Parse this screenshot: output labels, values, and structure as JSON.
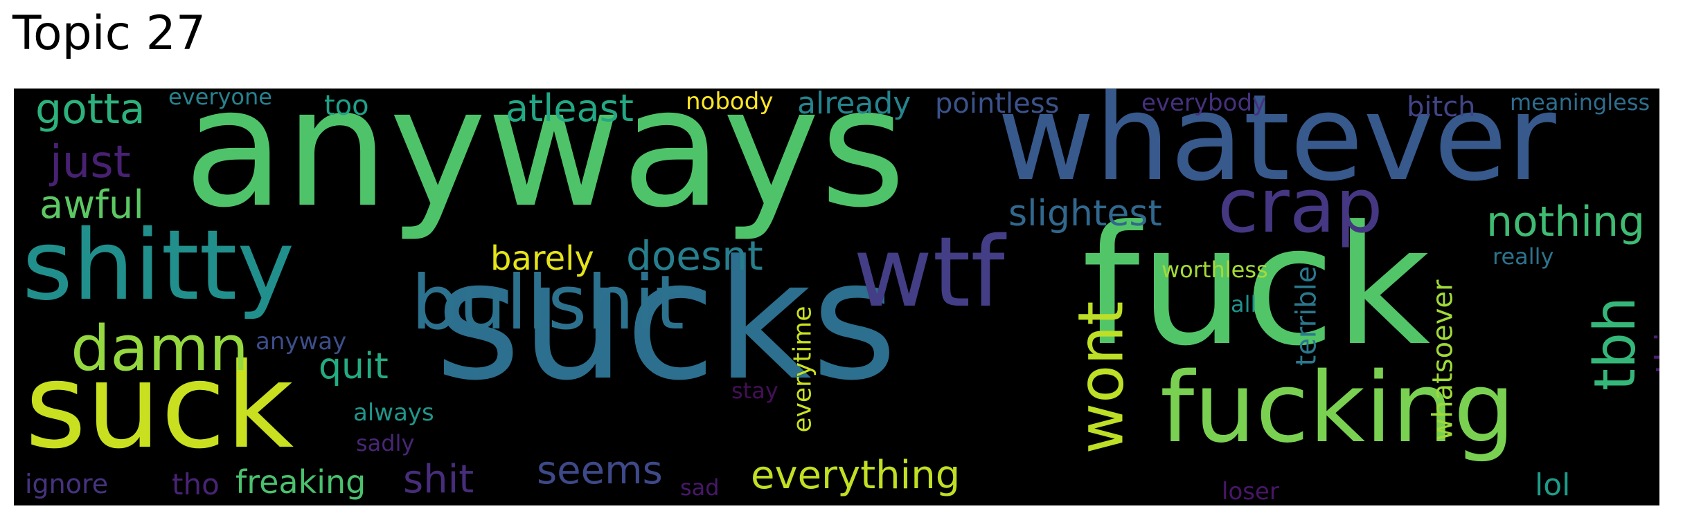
{
  "title": "Topic 27",
  "words": [
    {
      "text": "anyways",
      "color": "#4fc36a"
    },
    {
      "text": "whatever",
      "color": "#37598c"
    },
    {
      "text": "fuck",
      "color": "#52c569"
    },
    {
      "text": "sucks",
      "color": "#2c6f8e"
    },
    {
      "text": "shitty",
      "color": "#21908d"
    },
    {
      "text": "suck",
      "color": "#c8e020"
    },
    {
      "text": "fucking",
      "color": "#7ad151"
    },
    {
      "text": "bullshit",
      "color": "#2c728e"
    },
    {
      "text": "wtf",
      "color": "#433e85"
    },
    {
      "text": "crap",
      "color": "#453781"
    },
    {
      "text": "damn",
      "color": "#95d840"
    },
    {
      "text": "wont",
      "color": "#bddf26"
    },
    {
      "text": "tbh",
      "color": "#35b779"
    },
    {
      "text": "nothing",
      "color": "#3fbc73"
    },
    {
      "text": "just",
      "color": "#482173"
    },
    {
      "text": "gotta",
      "color": "#2db27d"
    },
    {
      "text": "awful",
      "color": "#5cc863"
    },
    {
      "text": "atleast",
      "color": "#22a884"
    },
    {
      "text": "slightest",
      "color": "#31688e"
    },
    {
      "text": "doesnt",
      "color": "#277f8e"
    },
    {
      "text": "barely",
      "color": "#e5e419"
    },
    {
      "text": "everything",
      "color": "#c2df23"
    },
    {
      "text": "seems",
      "color": "#3e4989"
    },
    {
      "text": "shit",
      "color": "#472d7b"
    },
    {
      "text": "quit",
      "color": "#25ab82"
    },
    {
      "text": "already",
      "color": "#25848e"
    },
    {
      "text": "pointless",
      "color": "#3b528b"
    },
    {
      "text": "bitch",
      "color": "#414487"
    },
    {
      "text": "anything",
      "color": "#481f70"
    },
    {
      "text": "terrible",
      "color": "#2a788e"
    },
    {
      "text": "whatsoever",
      "color": "#a0da39"
    },
    {
      "text": "everytime",
      "color": "#cae11f"
    },
    {
      "text": "freaking",
      "color": "#4ac16d"
    },
    {
      "text": "too",
      "color": "#1fa187"
    },
    {
      "text": "nobody",
      "color": "#fde725"
    },
    {
      "text": "everyone",
      "color": "#26828e"
    },
    {
      "text": "everybody",
      "color": "#46307e"
    },
    {
      "text": "meaningless",
      "color": "#2e6e8e"
    },
    {
      "text": "worthless",
      "color": "#a5db36"
    },
    {
      "text": "really",
      "color": "#2c738e"
    },
    {
      "text": "all",
      "color": "#20928c"
    },
    {
      "text": "lol",
      "color": "#1e9c89"
    },
    {
      "text": "loser",
      "color": "#481668"
    },
    {
      "text": "anyway",
      "color": "#3d4e8a"
    },
    {
      "text": "always",
      "color": "#1f968b"
    },
    {
      "text": "sadly",
      "color": "#482677"
    },
    {
      "text": "stay",
      "color": "#440f57"
    },
    {
      "text": "ignore",
      "color": "#46337e"
    },
    {
      "text": "tho",
      "color": "#482475"
    },
    {
      "text": "sad",
      "color": "#48186a"
    }
  ]
}
